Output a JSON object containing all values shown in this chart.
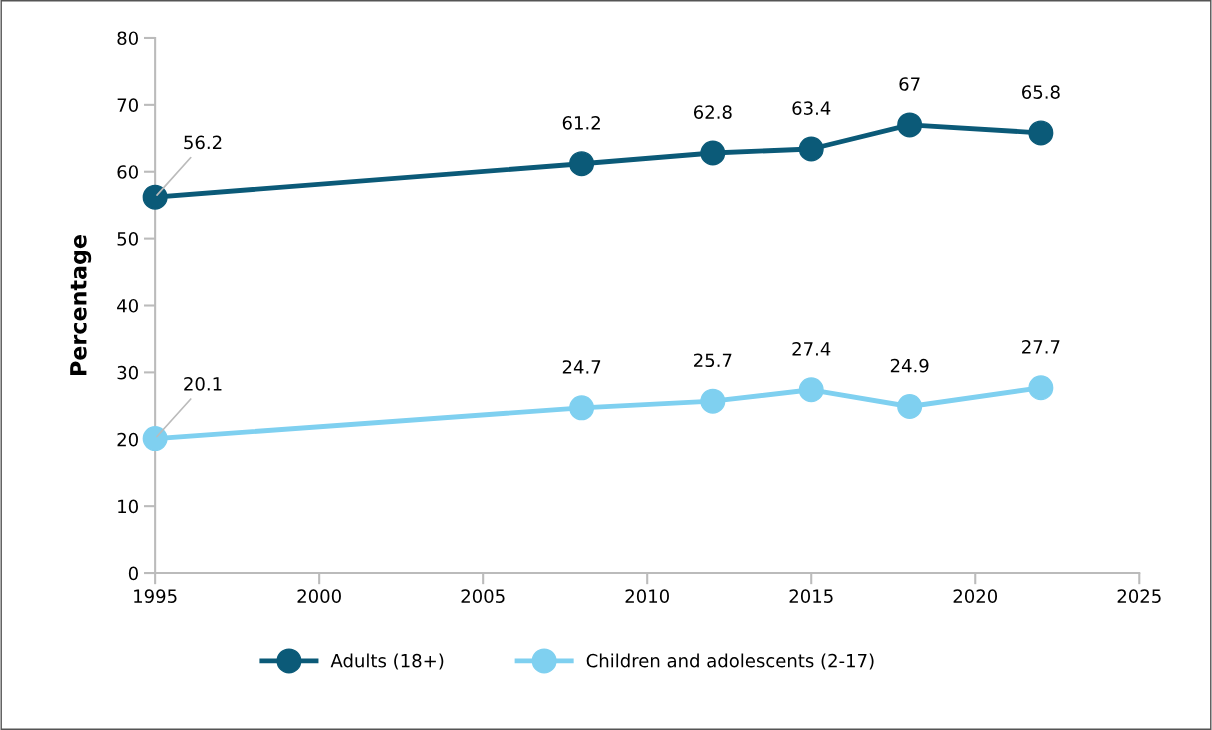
{
  "chart_data": {
    "type": "line",
    "ylabel": "Percentage",
    "x": [
      1995,
      2008,
      2012,
      2015,
      2018,
      2022
    ],
    "series": [
      {
        "name": "Adults (18+)",
        "color": "#0b5a78",
        "values": [
          56.2,
          61.2,
          62.8,
          63.4,
          67,
          65.8
        ]
      },
      {
        "name": "Children and adolescents (2-17)",
        "color": "#7fd0f0",
        "values": [
          20.1,
          24.7,
          25.7,
          27.4,
          24.9,
          27.7
        ]
      }
    ],
    "xlim": [
      1995,
      2025
    ],
    "xticks": [
      1995,
      2000,
      2005,
      2010,
      2015,
      2020,
      2025
    ],
    "ylim": [
      0,
      80
    ],
    "yticks": [
      0,
      10,
      20,
      30,
      40,
      50,
      60,
      70,
      80
    ],
    "data_labels": true,
    "marker": "circle",
    "line_style": "solid",
    "grid": false,
    "legend": "bottom"
  }
}
